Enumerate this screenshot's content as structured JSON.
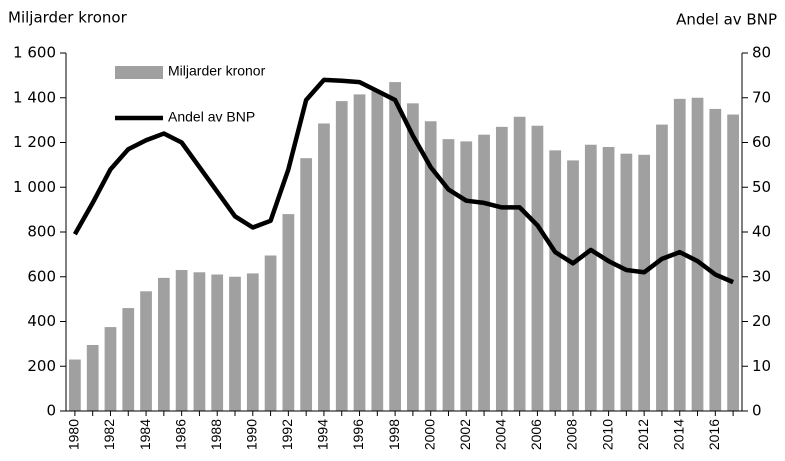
{
  "chart_data": {
    "type": "bar_line",
    "y_label": "Miljarder kronor",
    "y2_label": "Andel av BNP",
    "categories": [
      "1980",
      null,
      "1982",
      null,
      "1984",
      null,
      "1986",
      null,
      "1988",
      null,
      "1990",
      null,
      "1992",
      null,
      "1994",
      null,
      "1996",
      null,
      "1998",
      null,
      "2000",
      null,
      "2002",
      null,
      "2004",
      null,
      "2006",
      null,
      "2008",
      null,
      "2010",
      null,
      "2012",
      null,
      "2014",
      null,
      "2016",
      null
    ],
    "series": [
      {
        "name": "Miljarder kronor",
        "type": "bar",
        "color": "#a0a0a0",
        "axis": "y",
        "values": [
          230,
          295,
          375,
          460,
          535,
          595,
          630,
          620,
          610,
          600,
          615,
          695,
          880,
          1130,
          1285,
          1385,
          1415,
          1430,
          1470,
          1375,
          1295,
          1215,
          1205,
          1235,
          1270,
          1315,
          1275,
          1165,
          1120,
          1190,
          1180,
          1150,
          1145,
          1280,
          1395,
          1400,
          1350,
          1325
        ]
      },
      {
        "name": "Andel av BNP",
        "type": "line",
        "color": "#000000",
        "axis": "y2",
        "values": [
          39.5,
          46.5,
          54,
          58.5,
          60.5,
          62,
          60,
          54.5,
          49,
          43.5,
          41,
          42.5,
          54,
          69.5,
          74,
          73.8,
          73.5,
          71.5,
          69.5,
          61.5,
          54.5,
          49.5,
          47,
          46.5,
          45.5,
          45.5,
          41.5,
          35.5,
          33,
          36,
          33.5,
          31.5,
          31,
          34,
          35.5,
          33.5,
          30.5,
          28.8
        ]
      }
    ],
    "ylim": [
      0,
      1600
    ],
    "yticks": [
      0,
      200,
      400,
      600,
      800,
      {
        "value": 1000,
        "label": "1 000"
      },
      {
        "value": 1200,
        "label": "1 200"
      },
      {
        "value": 1400,
        "label": "1 400"
      },
      {
        "value": 1600,
        "label": "1 600"
      }
    ],
    "y2lim": [
      0,
      80
    ],
    "y2ticks": [
      0,
      10,
      20,
      30,
      40,
      50,
      60,
      70,
      80
    ],
    "grid": false
  }
}
